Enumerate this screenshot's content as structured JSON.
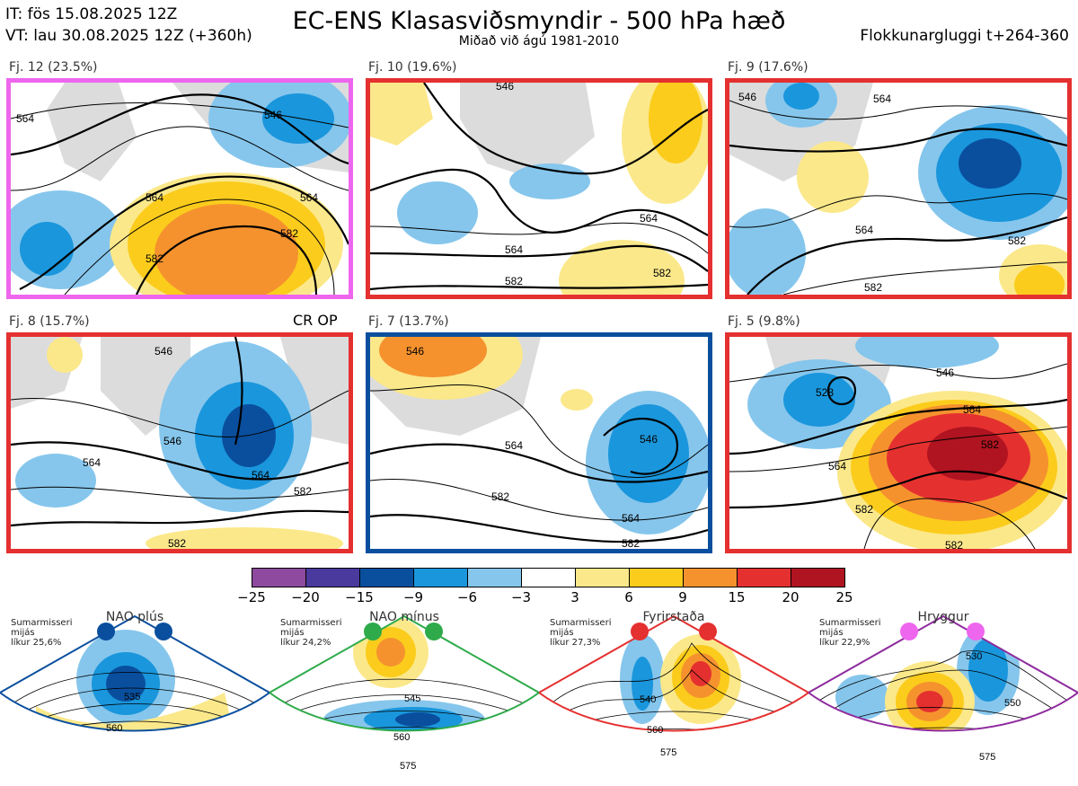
{
  "header": {
    "it": "IT: fös 15.08.2025 12Z",
    "vt": "VT: lau 30.08.2025 12Z  (+360h)",
    "title": "EC-ENS Klasasviðsmyndir - 500 hPa hæð",
    "subtitle": "Miðað við ágú 1981-2010",
    "window": "Flokkunargluggi t+264-360"
  },
  "annotation": "CR OP",
  "clusters": [
    {
      "label": "Fj. 12 (23.5%)",
      "border_color": "#ee66ee",
      "contours": [
        "564",
        "546",
        "564",
        "582",
        "564",
        "582"
      ]
    },
    {
      "label": "Fj. 10 (19.6%)",
      "border_color": "#e53030",
      "contours": [
        "546",
        "564",
        "564",
        "582",
        "582"
      ]
    },
    {
      "label": "Fj. 9 (17.6%)",
      "border_color": "#e53030",
      "contours": [
        "546",
        "564",
        "564",
        "582",
        "582"
      ]
    },
    {
      "label": "Fj. 8 (15.7%)",
      "border_color": "#e53030",
      "contours": [
        "546",
        "546",
        "564",
        "564",
        "582",
        "582"
      ]
    },
    {
      "label": "Fj. 7 (13.7%)",
      "border_color": "#0a4f9e",
      "contours": [
        "546",
        "564",
        "546",
        "582",
        "564",
        "582"
      ]
    },
    {
      "label": "Fj. 5 (9.8%)",
      "border_color": "#e53030",
      "contours": [
        "546",
        "528",
        "564",
        "582",
        "564",
        "582",
        "582"
      ]
    }
  ],
  "colorbar": {
    "colors": [
      "#8e4a9e",
      "#4b3a9e",
      "#0a4f9e",
      "#1a96dc",
      "#86c6ec",
      "#ffffff",
      "#fbe88a",
      "#fbcc1c",
      "#f5922e",
      "#e53030",
      "#b01420"
    ],
    "ticks": [
      "−25",
      "−20",
      "−15",
      "−9",
      "−6",
      "−3",
      "3",
      "6",
      "9",
      "15",
      "20",
      "25"
    ]
  },
  "regimes": [
    {
      "title": "NAO plús",
      "stats": [
        "Sumarmisseri",
        "mijás",
        "líkur 25,6%"
      ],
      "color": "#0a4f9e",
      "contours": [
        "535",
        "560"
      ]
    },
    {
      "title": "NAO mínus",
      "stats": [
        "Sumarmisseri",
        "mijás",
        "líkur 24,2%"
      ],
      "color": "#2eaa4a",
      "contours": [
        "545",
        "560",
        "575"
      ]
    },
    {
      "title": "Fyrirstaða",
      "stats": [
        "Sumarmisseri",
        "mijás",
        "líkur 27,3%"
      ],
      "color": "#e53030",
      "contours": [
        "540",
        "560",
        "575"
      ]
    },
    {
      "title": "Hryggur",
      "stats": [
        "Sumarmisseri",
        "mijás",
        "líkur 22,9%"
      ],
      "color": "#ee66ee",
      "contours": [
        "530",
        "550",
        "575"
      ]
    }
  ]
}
